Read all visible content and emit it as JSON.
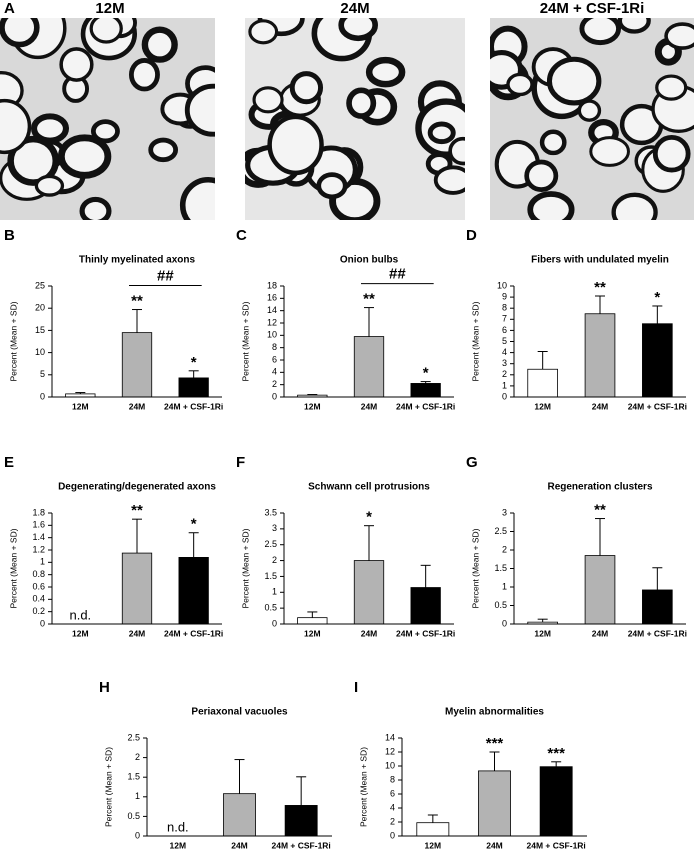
{
  "images": {
    "panel": "A",
    "labels": [
      "12M",
      "24M",
      "24M + CSF-1Ri"
    ]
  },
  "chart_data": [
    {
      "type": "bar",
      "panel": "B",
      "title": "Thinly myelinated axons",
      "ylabel": "Percent (Mean + SD)",
      "categories": [
        "12M",
        "24M",
        "24M + CSF-1Ri"
      ],
      "values": [
        0.7,
        14.5,
        4.3
      ],
      "errors": [
        0.3,
        5.2,
        1.6
      ],
      "colors": [
        "#ffffff",
        "#b3b3b3",
        "#000000"
      ],
      "annotations": [
        null,
        "**",
        "*"
      ],
      "bracket_label": "##",
      "ylim": [
        0,
        25
      ],
      "yticks": [
        0,
        5,
        10,
        15,
        20,
        25
      ]
    },
    {
      "type": "bar",
      "panel": "C",
      "title": "Onion bulbs",
      "ylabel": "Percent (Mean + SD)",
      "categories": [
        "12M",
        "24M",
        "24M + CSF-1Ri"
      ],
      "values": [
        0.3,
        9.8,
        2.2
      ],
      "errors": [
        0.1,
        4.7,
        0.3
      ],
      "colors": [
        "#ffffff",
        "#b3b3b3",
        "#000000"
      ],
      "annotations": [
        null,
        "**",
        "*"
      ],
      "bracket_label": "##",
      "ylim": [
        0,
        18
      ],
      "yticks": [
        0,
        2,
        4,
        6,
        8,
        10,
        12,
        14,
        16,
        18
      ]
    },
    {
      "type": "bar",
      "panel": "D",
      "title": "Fibers with undulated myelin",
      "ylabel": "Percent (Mean + SD)",
      "categories": [
        "12M",
        "24M",
        "24M + CSF-1Ri"
      ],
      "values": [
        2.5,
        7.5,
        6.6
      ],
      "errors": [
        1.6,
        1.6,
        1.6
      ],
      "colors": [
        "#ffffff",
        "#b3b3b3",
        "#000000"
      ],
      "annotations": [
        null,
        "**",
        "*"
      ],
      "ylim": [
        0,
        10
      ],
      "yticks": [
        0,
        1,
        2,
        3,
        4,
        5,
        6,
        7,
        8,
        9,
        10
      ]
    },
    {
      "type": "bar",
      "panel": "E",
      "title": "Degenerating/degenerated axons",
      "ylabel": "Percent (Mean + SD)",
      "categories": [
        "12M",
        "24M",
        "24M + CSF-1Ri"
      ],
      "values": [
        null,
        1.15,
        1.08
      ],
      "value_labels": [
        "n.d.",
        null,
        null
      ],
      "errors": [
        null,
        0.55,
        0.4
      ],
      "colors": [
        "#ffffff",
        "#b3b3b3",
        "#000000"
      ],
      "annotations": [
        null,
        "**",
        "*"
      ],
      "ylim": [
        0,
        1.8
      ],
      "yticks": [
        0,
        0.2,
        0.4,
        0.6,
        0.8,
        1,
        1.2,
        1.4,
        1.6,
        1.8
      ]
    },
    {
      "type": "bar",
      "panel": "F",
      "title": "Schwann cell protrusions",
      "ylabel": "Percent (Mean + SD)",
      "categories": [
        "12M",
        "24M",
        "24M + CSF-1Ri"
      ],
      "values": [
        0.2,
        2.0,
        1.15
      ],
      "errors": [
        0.18,
        1.1,
        0.7
      ],
      "colors": [
        "#ffffff",
        "#b3b3b3",
        "#000000"
      ],
      "annotations": [
        null,
        "*",
        null
      ],
      "ylim": [
        0,
        3.5
      ],
      "yticks": [
        0,
        0.5,
        1,
        1.5,
        2,
        2.5,
        3,
        3.5
      ]
    },
    {
      "type": "bar",
      "panel": "G",
      "title": "Regeneration clusters",
      "ylabel": "Percent (Mean + SD)",
      "categories": [
        "12M",
        "24M",
        "24M + CSF-1Ri"
      ],
      "values": [
        0.05,
        1.85,
        0.92
      ],
      "errors": [
        0.08,
        1.0,
        0.6
      ],
      "colors": [
        "#ffffff",
        "#b3b3b3",
        "#000000"
      ],
      "annotations": [
        null,
        "**",
        null
      ],
      "ylim": [
        0,
        3
      ],
      "yticks": [
        0,
        0.5,
        1,
        1.5,
        2,
        2.5,
        3
      ]
    },
    {
      "type": "bar",
      "panel": "H",
      "title": "Periaxonal vacuoles",
      "ylabel": "Percent (Mean + SD)",
      "categories": [
        "12M",
        "24M",
        "24M + CSF-1Ri"
      ],
      "values": [
        null,
        1.08,
        0.78
      ],
      "value_labels": [
        "n.d.",
        null,
        null
      ],
      "errors": [
        null,
        0.87,
        0.73
      ],
      "colors": [
        "#ffffff",
        "#b3b3b3",
        "#000000"
      ],
      "annotations": [
        null,
        null,
        null
      ],
      "ylim": [
        0,
        2.5
      ],
      "yticks": [
        0,
        0.5,
        1,
        1.5,
        2,
        2.5
      ]
    },
    {
      "type": "bar",
      "panel": "I",
      "title": "Myelin abnormalities",
      "ylabel": "Percent (Mean + SD)",
      "categories": [
        "12M",
        "24M",
        "24M + CSF-1Ri"
      ],
      "values": [
        1.9,
        9.3,
        9.9
      ],
      "errors": [
        1.1,
        2.7,
        0.7
      ],
      "colors": [
        "#ffffff",
        "#b3b3b3",
        "#000000"
      ],
      "annotations": [
        null,
        "***",
        "***"
      ],
      "ylim": [
        0,
        14
      ],
      "yticks": [
        0,
        2,
        4,
        6,
        8,
        10,
        12,
        14
      ]
    }
  ]
}
